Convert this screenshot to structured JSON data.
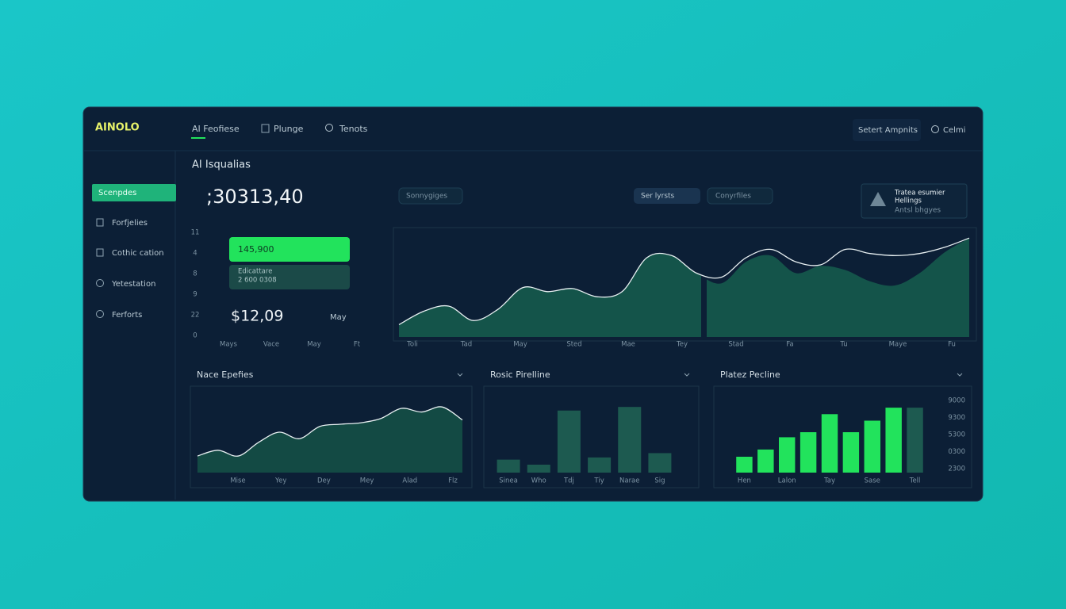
{
  "brand": "AINOLO",
  "nav": [
    "AI Feofiese",
    "Plunge",
    "Tenots"
  ],
  "header_actions": [
    "Setert Ampnits",
    "Celmi"
  ],
  "sidebar": [
    "Scenpdes",
    "Forfjelies",
    "Cothic cation",
    "Yetestation",
    "Ferforts"
  ],
  "overview": {
    "title": "AI Isqualias",
    "total": ";30313,40",
    "chips": [
      "Sonnygiges",
      "Ser lyrsts",
      "Conyrfiles"
    ],
    "card": [
      "Tratea esumier",
      "Hellings",
      "Antsl bhgyes"
    ]
  },
  "summary": {
    "y_labels": [
      "11",
      "4",
      "8",
      "9",
      "22",
      "0"
    ],
    "button": "145,900",
    "box": [
      "Edicattare",
      "2 600 0308"
    ],
    "amount": "$12,09",
    "month": "May",
    "x_labels": [
      "Mays",
      "Vace",
      "May",
      "Ft"
    ]
  },
  "main_chart": {
    "type": "area",
    "x_labels": [
      "Toli",
      "Tad",
      "May",
      "Sted",
      "Mae",
      "Tey",
      "Stad",
      "Fa",
      "Tu",
      "Maye",
      "Fu"
    ],
    "ylim": [
      0,
      100
    ],
    "line_values": [
      12,
      25,
      30,
      16,
      27,
      48,
      44,
      47,
      39,
      44,
      77,
      79,
      62,
      58,
      77,
      85,
      73,
      70,
      85,
      81,
      79,
      81,
      87,
      96
    ],
    "area_values": [
      12,
      25,
      30,
      16,
      27,
      48,
      44,
      47,
      39,
      44,
      77,
      79,
      62,
      52,
      73,
      79,
      62,
      69,
      65,
      54,
      50,
      62,
      82,
      96
    ]
  },
  "panels": [
    {
      "title": "Nace Epefies",
      "type": "area",
      "x_labels": [
        "Mise",
        "Yey",
        "Dey",
        "Mey",
        "Alad",
        "Flz"
      ],
      "ylim": [
        0,
        100
      ],
      "values": [
        23,
        31,
        23,
        42,
        56,
        47,
        64,
        67,
        69,
        75,
        89,
        84,
        91,
        73
      ]
    },
    {
      "title": "Rosic Pirelline",
      "type": "bar",
      "categories": [
        "Sinea",
        "Who",
        "Tdj",
        "Tiy",
        "Narae",
        "Sig"
      ],
      "ylim": [
        0,
        100
      ],
      "values": [
        18,
        11,
        86,
        21,
        91,
        27
      ],
      "color": "#1d5a50"
    },
    {
      "title": "Platez Pecline",
      "type": "bar",
      "categories": [
        "Hen",
        null,
        "Lalon",
        null,
        "Tay",
        null,
        "Sase",
        null,
        "Tell"
      ],
      "ylim": [
        0,
        100
      ],
      "values": [
        22,
        32,
        49,
        56,
        81,
        56,
        72,
        90,
        90
      ],
      "colors": [
        "#22e35c",
        "#22e35c",
        "#22e35c",
        "#22e35c",
        "#22e35c",
        "#22e35c",
        "#22e35c",
        "#22e35c",
        "#1d5a50"
      ],
      "y_labels": [
        "9000",
        "9300",
        "5300",
        "0300",
        "2300"
      ]
    }
  ]
}
